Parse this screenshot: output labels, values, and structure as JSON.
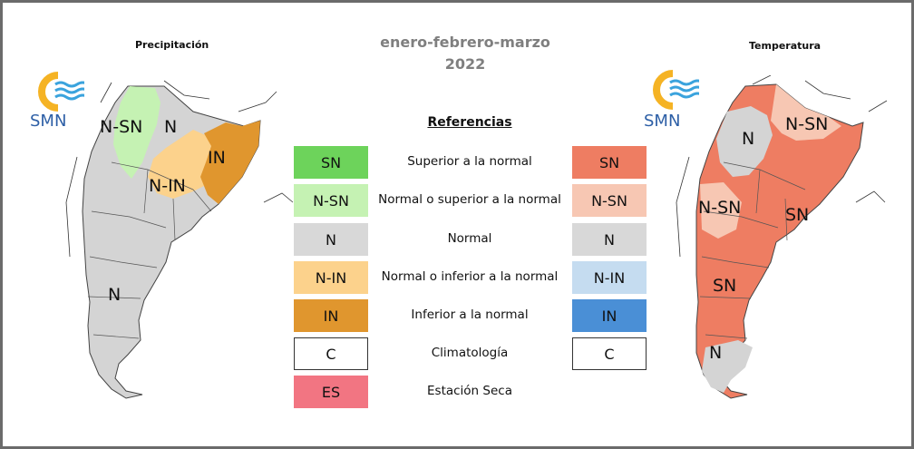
{
  "season": {
    "months": "enero-febrero-marzo",
    "year": "2022"
  },
  "maps": {
    "precipitation": {
      "title": "Precipitación",
      "logo": "SMN",
      "labels": [
        "N-SN",
        "N",
        "IN",
        "N-IN",
        "N"
      ]
    },
    "temperature": {
      "title": "Temperatura",
      "logo": "SMN",
      "labels": [
        "N-SN",
        "N",
        "N-SN",
        "SN",
        "SN",
        "N"
      ]
    }
  },
  "references": {
    "title": "Referencias",
    "rows": [
      {
        "left": "SN",
        "left_color": "#6dd35b",
        "desc": "Superior a la normal",
        "right": "SN",
        "right_color": "#ee7d62"
      },
      {
        "left": "N-SN",
        "left_color": "#c5f2b3",
        "desc": "Normal o superior a la normal",
        "right": "N-SN",
        "right_color": "#f7c7b3"
      },
      {
        "left": "N",
        "left_color": "#d8d8d8",
        "desc": "Normal",
        "right": "N",
        "right_color": "#d8d8d8"
      },
      {
        "left": "N-IN",
        "left_color": "#fcd28c",
        "desc": "Normal o inferior a la normal",
        "right": "N-IN",
        "right_color": "#c5dcf0"
      },
      {
        "left": "IN",
        "left_color": "#e0962e",
        "desc": "Inferior a la normal",
        "right": "IN",
        "right_color": "#4a8fd6"
      },
      {
        "left": "C",
        "left_color": "#ffffff",
        "desc": "Climatología",
        "right": "C",
        "right_color": "#ffffff"
      },
      {
        "left": "ES",
        "left_color": "#f27582",
        "desc": "Estación Seca",
        "right": null,
        "right_color": null
      }
    ]
  },
  "icons": {
    "logo": "smn-sun-waves-icon"
  }
}
